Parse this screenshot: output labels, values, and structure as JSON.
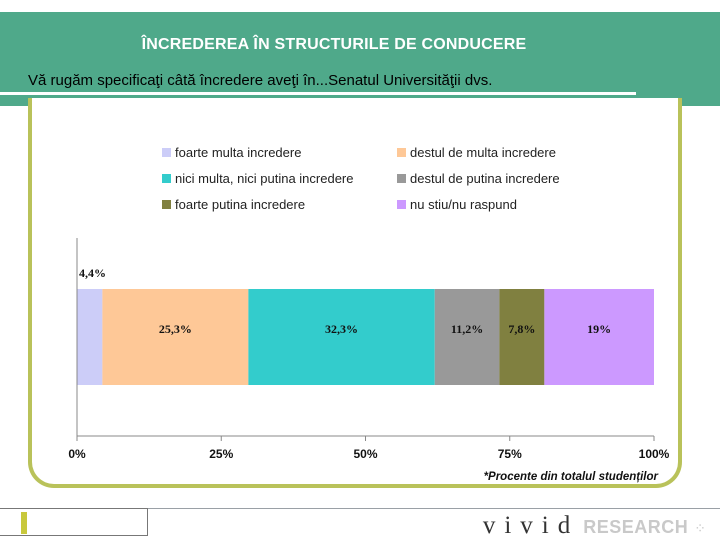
{
  "header": {
    "title": "ÎNCREDEREA ÎN STRUCTURILE DE CONDUCERE",
    "subtitle": "Vă rugăm specificaţi câtă încredere aveţi în...Senatul Universităţii dvs."
  },
  "colors": {
    "header_band": "#4fa98a",
    "frame": "#b9c25a"
  },
  "chart_data": {
    "type": "bar",
    "orientation": "horizontal",
    "stacked": true,
    "categories": [
      ""
    ],
    "series": [
      {
        "name": "foarte multa incredere",
        "values": [
          4.4
        ],
        "label": "4,4%",
        "color": "#cccdf8"
      },
      {
        "name": "destul de multa incredere",
        "values": [
          25.3
        ],
        "label": "25,3%",
        "color": "#fec897"
      },
      {
        "name": "nici multa, nici putina incredere",
        "values": [
          32.3
        ],
        "label": "32,3%",
        "color": "#33cccc"
      },
      {
        "name": "destul de putina incredere",
        "values": [
          11.2
        ],
        "label": "11,2%",
        "color": "#999999"
      },
      {
        "name": "foarte putina incredere",
        "values": [
          7.8
        ],
        "label": "7,8%",
        "color": "#808040"
      },
      {
        "name": "nu stiu/nu raspund",
        "values": [
          19
        ],
        "label": "19%",
        "color": "#cc99ff"
      }
    ],
    "xlim": [
      0,
      100
    ],
    "x_ticks": [
      "0%",
      "25%",
      "50%",
      "75%",
      "100%"
    ],
    "legend_position": "top",
    "grid": false,
    "note": "*Procente din totalul studenților"
  },
  "footer": {
    "logo_word": "vivid",
    "logo_research": "RESEARCH",
    "logo_dots": "⁘"
  }
}
